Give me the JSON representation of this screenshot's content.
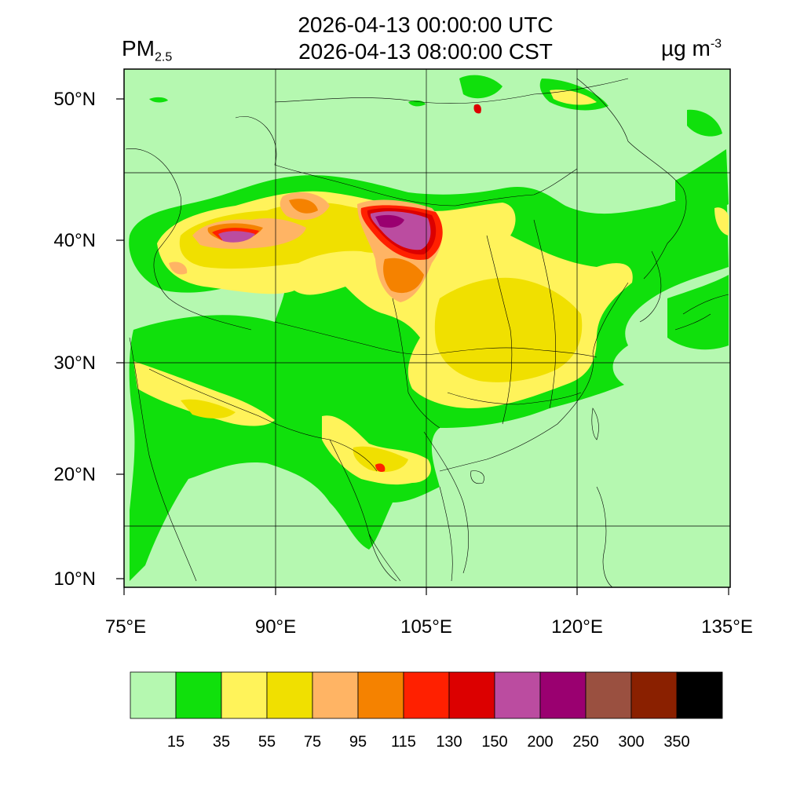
{
  "title": {
    "utc": "2026-04-13 00:00:00 UTC",
    "cst": "2026-04-13 08:00:00 CST"
  },
  "variable": {
    "name": "PM",
    "subscript": "2.5"
  },
  "unit": {
    "base": "µg m",
    "exponent": "-3"
  },
  "axes": {
    "lon_labels": [
      "75°E",
      "90°E",
      "105°E",
      "120°E",
      "135°E"
    ],
    "lat_labels": [
      "50°N",
      "40°N",
      "30°N",
      "20°N",
      "10°N"
    ]
  },
  "colorbar": {
    "colors": [
      "#b5f8b0",
      "#10e00c",
      "#fff35a",
      "#f0e000",
      "#ffb464",
      "#f58200",
      "#ff2000",
      "#dc0000",
      "#bb4ca0",
      "#9a0070",
      "#9a5040",
      "#8a2000",
      "#000000"
    ],
    "labels": [
      "15",
      "35",
      "55",
      "75",
      "95",
      "115",
      "130",
      "150",
      "200",
      "250",
      "300",
      "350"
    ]
  }
}
